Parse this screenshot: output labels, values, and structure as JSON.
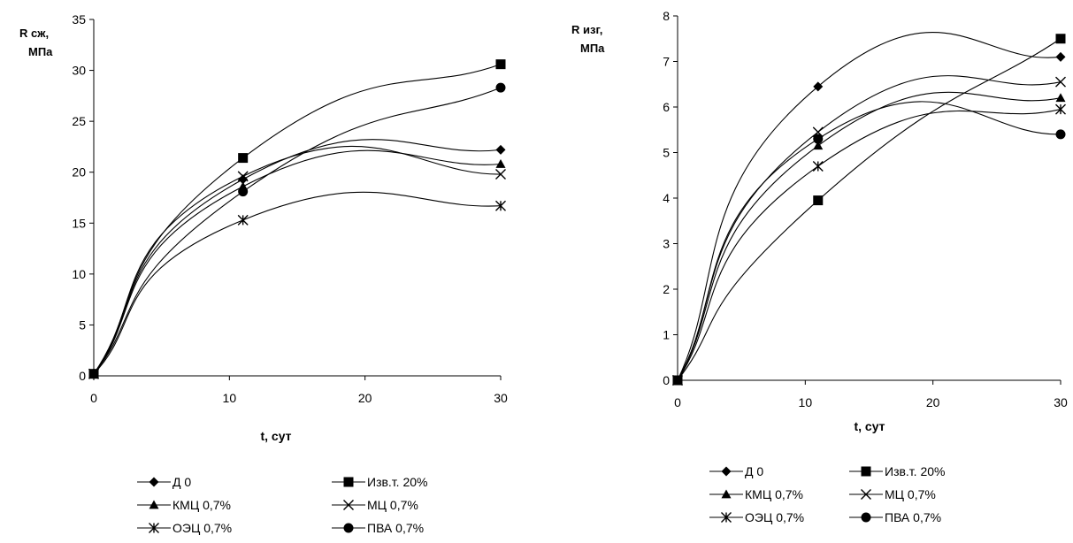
{
  "chart_data": [
    {
      "type": "line",
      "ylabel": [
        "R сж,",
        "МПа"
      ],
      "xlabel": "t, сут",
      "xlim": [
        0,
        30
      ],
      "ylim": [
        0,
        35
      ],
      "xticks": [
        0,
        10,
        20,
        30
      ],
      "yticks": [
        0,
        5,
        10,
        15,
        20,
        25,
        30,
        35
      ],
      "grid": false,
      "legend_position": "bottom",
      "smooth": true,
      "series": [
        {
          "name": "Д 0",
          "marker": "diamond",
          "x": [
            0,
            11,
            30
          ],
          "y": [
            0.2,
            19.3,
            22.2
          ]
        },
        {
          "name": "Изв.т. 20%",
          "marker": "square",
          "x": [
            0,
            11,
            30
          ],
          "y": [
            0.2,
            21.4,
            30.6
          ]
        },
        {
          "name": "КМЦ 0,7%",
          "marker": "triangle",
          "x": [
            0,
            11,
            30
          ],
          "y": [
            0.2,
            18.6,
            20.8
          ]
        },
        {
          "name": "МЦ 0,7%",
          "marker": "x",
          "x": [
            0,
            11,
            30
          ],
          "y": [
            0.2,
            19.6,
            19.8
          ]
        },
        {
          "name": "ОЭЦ 0,7%",
          "marker": "star",
          "x": [
            0,
            11,
            30
          ],
          "y": [
            0.2,
            15.3,
            16.7
          ]
        },
        {
          "name": "ПВА 0,7%",
          "marker": "circle",
          "x": [
            0,
            11,
            30
          ],
          "y": [
            0.2,
            18.1,
            28.3
          ]
        }
      ]
    },
    {
      "type": "line",
      "ylabel": [
        "R изг,",
        "МПа"
      ],
      "xlabel": "t, сут",
      "xlim": [
        0,
        30
      ],
      "ylim": [
        0,
        8
      ],
      "xticks": [
        0,
        10,
        20,
        30
      ],
      "yticks": [
        0,
        1,
        2,
        3,
        4,
        5,
        6,
        7,
        8
      ],
      "grid": false,
      "legend_position": "bottom",
      "smooth": true,
      "series": [
        {
          "name": "Д 0",
          "marker": "diamond",
          "x": [
            0,
            11,
            30
          ],
          "y": [
            0.0,
            6.45,
            7.1
          ]
        },
        {
          "name": "Изв.т. 20%",
          "marker": "square",
          "x": [
            0,
            11,
            30
          ],
          "y": [
            0.0,
            3.95,
            7.5
          ]
        },
        {
          "name": "КМЦ 0,7%",
          "marker": "triangle",
          "x": [
            0,
            11,
            30
          ],
          "y": [
            0.0,
            5.15,
            6.2
          ]
        },
        {
          "name": "МЦ 0,7%",
          "marker": "x",
          "x": [
            0,
            11,
            30
          ],
          "y": [
            0.0,
            5.45,
            6.55
          ]
        },
        {
          "name": "ОЭЦ 0,7%",
          "marker": "star",
          "x": [
            0,
            11,
            30
          ],
          "y": [
            0.0,
            4.7,
            5.95
          ]
        },
        {
          "name": "ПВА 0,7%",
          "marker": "circle",
          "x": [
            0,
            11,
            30
          ],
          "y": [
            0.0,
            5.3,
            5.4
          ]
        }
      ]
    }
  ]
}
